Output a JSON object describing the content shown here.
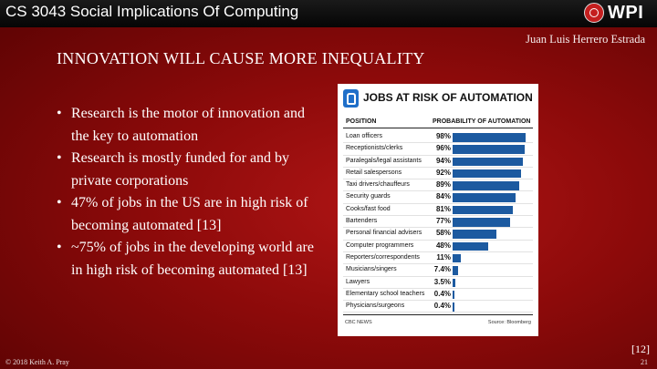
{
  "header": {
    "course_title": "CS 3043 Social Implications Of Computing",
    "logo_text": "WPI",
    "author": "Juan Luis Herrero Estrada"
  },
  "slide": {
    "title": "INNOVATION WILL CAUSE MORE INEQUALITY",
    "bullets": [
      "Research is the motor of innovation and the key to automation",
      "Research is mostly funded for and by private corporations",
      "47% of jobs in the US are in high risk of becoming automated [13]",
      "~75% of jobs in the developing world are in high risk of becoming automated [13]"
    ],
    "citation": "[12]"
  },
  "figure": {
    "title": "JOBS AT RISK OF AUTOMATION",
    "col_position": "POSITION",
    "col_probability": "PROBABILITY OF AUTOMATION",
    "source_left": "CBC NEWS",
    "source_right": "Source: Bloomberg",
    "bar_color": "#1c5aa0"
  },
  "chart_data": {
    "type": "bar",
    "title": "JOBS AT RISK OF AUTOMATION",
    "xlabel": "PROBABILITY OF AUTOMATION",
    "ylabel": "POSITION",
    "xlim": [
      0,
      100
    ],
    "categories": [
      "Loan officers",
      "Receptionists/clerks",
      "Paralegals/legal assistants",
      "Retail salespersons",
      "Taxi drivers/chauffeurs",
      "Security guards",
      "Cooks/fast food",
      "Bartenders",
      "Personal financial advisers",
      "Computer programmers",
      "Reporters/correspondents",
      "Musicians/singers",
      "Lawyers",
      "Elementary school teachers",
      "Physicians/surgeons"
    ],
    "values": [
      98,
      96,
      94,
      92,
      89,
      84,
      81,
      77,
      58,
      48,
      11,
      7.4,
      3.5,
      0.4,
      0.4
    ],
    "labels": [
      "98%",
      "96%",
      "94%",
      "92%",
      "89%",
      "84%",
      "81%",
      "77%",
      "58%",
      "48%",
      "11%",
      "7.4%",
      "3.5%",
      "0.4%",
      "0.4%"
    ]
  },
  "footer": {
    "copyright": "© 2018 Keith A. Pray",
    "page_number": "21"
  }
}
